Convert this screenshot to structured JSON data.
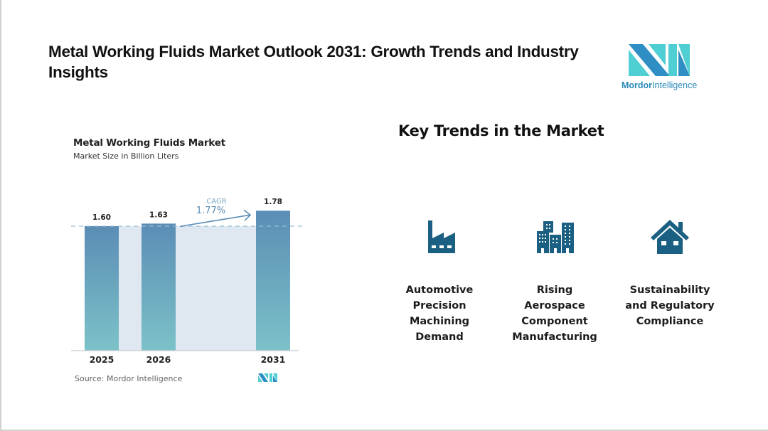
{
  "page": {
    "title": "Metal Working Fluids Market Outlook 2031: Growth Trends and Industry Insights",
    "logo": {
      "brand_bold": "Mordor",
      "brand_rest": "Intelligence",
      "colors": {
        "dark": "#2f8fc4",
        "light": "#4fcfd3"
      }
    }
  },
  "chart_data": {
    "type": "bar",
    "title": "Metal Working Fluids Market",
    "subtitle": "Market Size in Billion Liters",
    "categories": [
      "2025",
      "2026",
      "2031"
    ],
    "values": [
      1.6,
      1.63,
      1.78
    ],
    "value_labels": [
      "1.60",
      "1.63",
      "1.78"
    ],
    "xlabel": "",
    "ylabel": "",
    "annotation": {
      "label": "CAGR",
      "value": "1.77%"
    },
    "source": "Source: Mordor Intelligence",
    "colors": {
      "bar_top": "#5b8db5",
      "bar_bottom": "#7cc2c8",
      "band": "#dfe8f1",
      "dashed": "#9bbdd2",
      "arrow": "#5b8db5"
    }
  },
  "trends": {
    "heading": "Key Trends in the Market",
    "icon_color": "#1b5f82",
    "items": [
      {
        "icon": "factory-icon",
        "lines": [
          "Automotive",
          "Precision",
          "Machining",
          "Demand"
        ]
      },
      {
        "icon": "buildings-icon",
        "lines": [
          "Rising",
          "Aerospace",
          "Component",
          "Manufacturing"
        ]
      },
      {
        "icon": "house-icon",
        "lines": [
          "Sustainability",
          "and Regulatory",
          "Compliance"
        ]
      }
    ]
  }
}
